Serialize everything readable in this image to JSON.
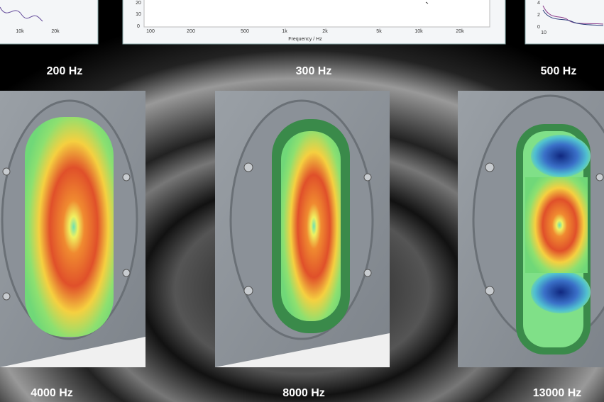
{
  "top_panels": {
    "left": {
      "x_ticks": [
        "10k",
        "20k"
      ]
    },
    "middle": {
      "y_ticks": [
        "20",
        "10",
        "0"
      ],
      "x_ticks": [
        "100",
        "200",
        "500",
        "1k",
        "2k",
        "5k",
        "10k",
        "20k"
      ],
      "x_label": "Frequency / Hz"
    },
    "right": {
      "y_ticks": [
        "4",
        "2",
        "0"
      ],
      "x_ticks": [
        "10"
      ]
    }
  },
  "frequency_labels": {
    "top": [
      "200 Hz",
      "300 Hz",
      "500 Hz"
    ],
    "bottom": [
      "4000 Hz",
      "8000 Hz",
      "13000 Hz"
    ]
  }
}
